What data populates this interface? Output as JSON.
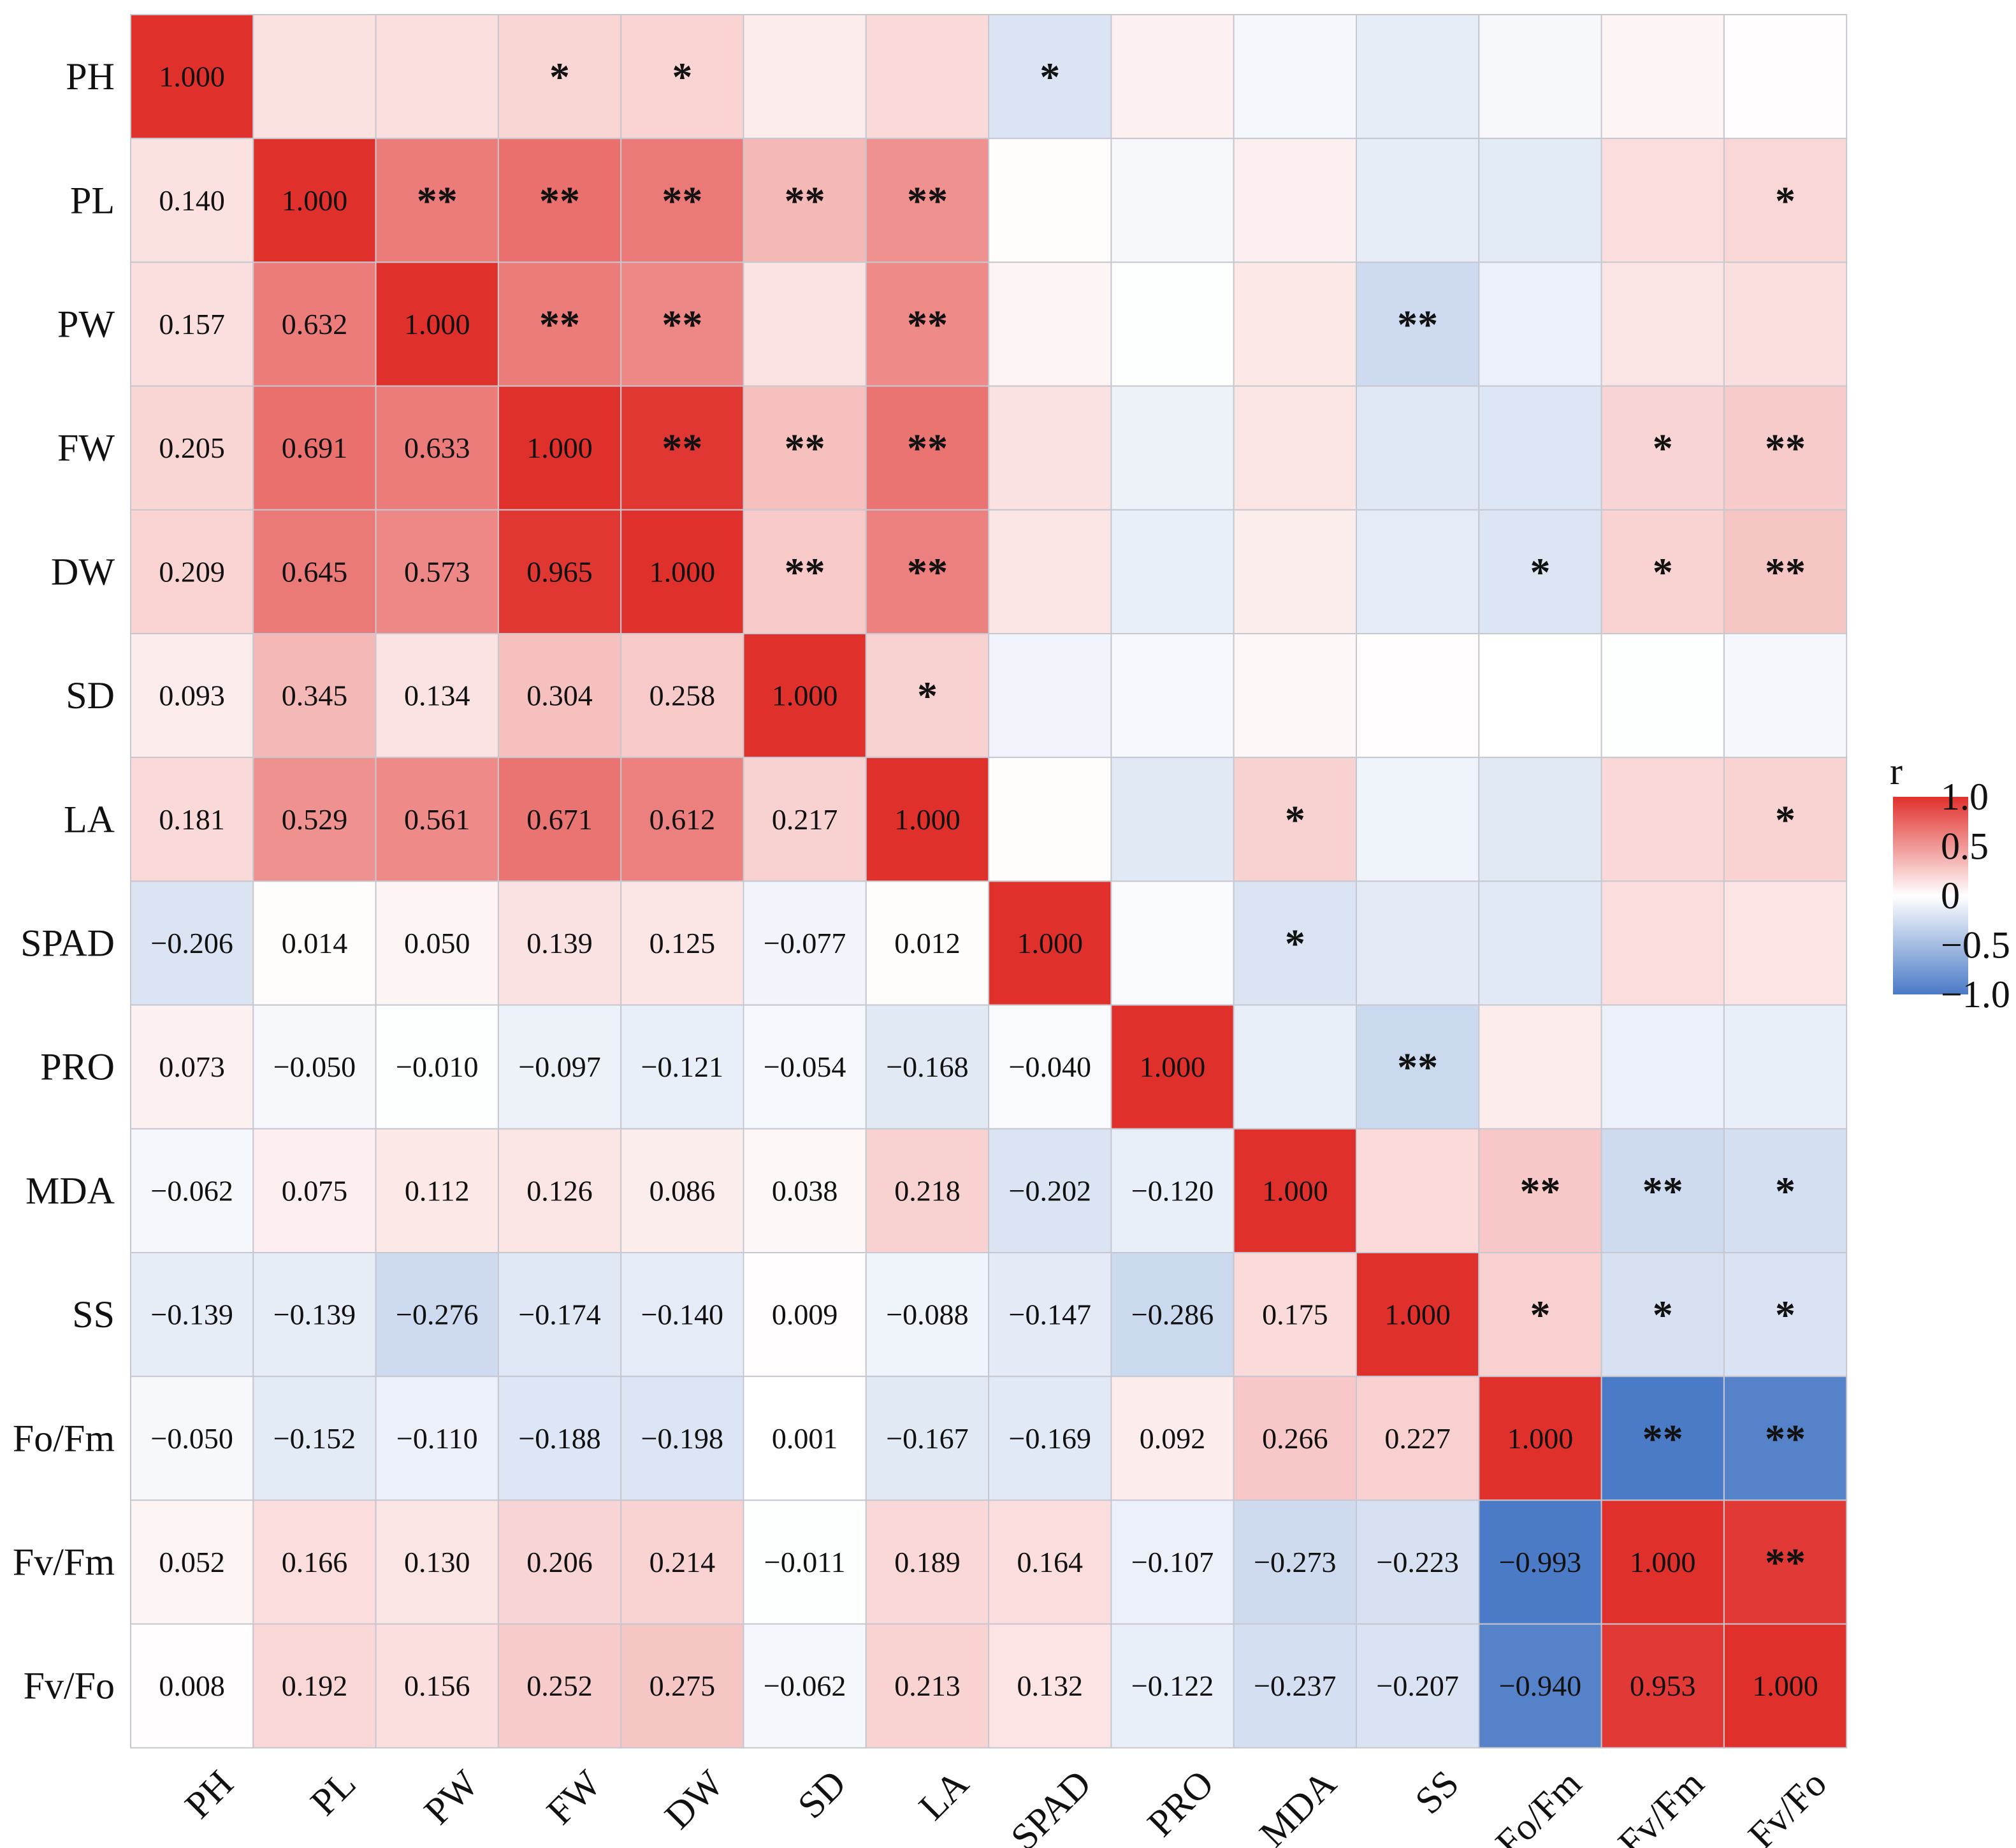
{
  "chart_data": {
    "type": "heatmap",
    "title": "",
    "variables": [
      "PH",
      "PL",
      "PW",
      "FW",
      "DW",
      "SD",
      "LA",
      "SPAD",
      "PRO",
      "MDA",
      "SS",
      "Fo/Fm",
      "Fv/Fm",
      "Fv/Fo"
    ],
    "lower_triangle_and_diagonal": [
      [
        "1.000"
      ],
      [
        "0.140",
        "1.000"
      ],
      [
        "0.157",
        "0.632",
        "1.000"
      ],
      [
        "0.205",
        "0.691",
        "0.633",
        "1.000"
      ],
      [
        "0.209",
        "0.645",
        "0.573",
        "0.965",
        "1.000"
      ],
      [
        "0.093",
        "0.345",
        "0.134",
        "0.304",
        "0.258",
        "1.000"
      ],
      [
        "0.181",
        "0.529",
        "0.561",
        "0.671",
        "0.612",
        "0.217",
        "1.000"
      ],
      [
        "−0.206",
        "0.014",
        "0.050",
        "0.139",
        "0.125",
        "−0.077",
        "0.012",
        "1.000"
      ],
      [
        "0.073",
        "−0.050",
        "−0.010",
        "−0.097",
        "−0.121",
        "−0.054",
        "−0.168",
        "−0.040",
        "1.000"
      ],
      [
        "−0.062",
        "0.075",
        "0.112",
        "0.126",
        "0.086",
        "0.038",
        "0.218",
        "−0.202",
        "−0.120",
        "1.000"
      ],
      [
        "−0.139",
        "−0.139",
        "−0.276",
        "−0.174",
        "−0.140",
        "0.009",
        "−0.088",
        "−0.147",
        "−0.286",
        "0.175",
        "1.000"
      ],
      [
        "−0.050",
        "−0.152",
        "−0.110",
        "−0.188",
        "−0.198",
        "0.001",
        "−0.167",
        "−0.169",
        "0.092",
        "0.266",
        "0.227",
        "1.000"
      ],
      [
        "0.052",
        "0.166",
        "0.130",
        "0.206",
        "0.214",
        "−0.011",
        "0.189",
        "0.164",
        "−0.107",
        "−0.273",
        "−0.223",
        "−0.993",
        "1.000"
      ],
      [
        "0.008",
        "0.192",
        "0.156",
        "0.252",
        "0.275",
        "−0.062",
        "0.213",
        "0.132",
        "−0.122",
        "−0.237",
        "−0.207",
        "−0.940",
        "0.953",
        "1.000"
      ]
    ],
    "significance_upper": [
      {
        "row": 0,
        "col": 3,
        "stars": "*"
      },
      {
        "row": 0,
        "col": 4,
        "stars": "*"
      },
      {
        "row": 0,
        "col": 7,
        "stars": "*"
      },
      {
        "row": 1,
        "col": 2,
        "stars": "**"
      },
      {
        "row": 1,
        "col": 3,
        "stars": "**"
      },
      {
        "row": 1,
        "col": 4,
        "stars": "**"
      },
      {
        "row": 1,
        "col": 5,
        "stars": "**"
      },
      {
        "row": 1,
        "col": 6,
        "stars": "**"
      },
      {
        "row": 1,
        "col": 13,
        "stars": "*"
      },
      {
        "row": 2,
        "col": 3,
        "stars": "**"
      },
      {
        "row": 2,
        "col": 4,
        "stars": "**"
      },
      {
        "row": 2,
        "col": 6,
        "stars": "**"
      },
      {
        "row": 2,
        "col": 10,
        "stars": "**"
      },
      {
        "row": 3,
        "col": 4,
        "stars": "**"
      },
      {
        "row": 3,
        "col": 5,
        "stars": "**"
      },
      {
        "row": 3,
        "col": 6,
        "stars": "**"
      },
      {
        "row": 3,
        "col": 12,
        "stars": "*"
      },
      {
        "row": 3,
        "col": 13,
        "stars": "**"
      },
      {
        "row": 4,
        "col": 5,
        "stars": "**"
      },
      {
        "row": 4,
        "col": 6,
        "stars": "**"
      },
      {
        "row": 4,
        "col": 11,
        "stars": "*"
      },
      {
        "row": 4,
        "col": 12,
        "stars": "*"
      },
      {
        "row": 4,
        "col": 13,
        "stars": "**"
      },
      {
        "row": 5,
        "col": 6,
        "stars": "*"
      },
      {
        "row": 6,
        "col": 9,
        "stars": "*"
      },
      {
        "row": 6,
        "col": 13,
        "stars": "*"
      },
      {
        "row": 7,
        "col": 9,
        "stars": "*"
      },
      {
        "row": 8,
        "col": 10,
        "stars": "**"
      },
      {
        "row": 9,
        "col": 11,
        "stars": "**"
      },
      {
        "row": 9,
        "col": 12,
        "stars": "**"
      },
      {
        "row": 9,
        "col": 13,
        "stars": "*"
      },
      {
        "row": 10,
        "col": 11,
        "stars": "*"
      },
      {
        "row": 10,
        "col": 12,
        "stars": "*"
      },
      {
        "row": 10,
        "col": 13,
        "stars": "*"
      },
      {
        "row": 11,
        "col": 12,
        "stars": "**"
      },
      {
        "row": 11,
        "col": 13,
        "stars": "**"
      },
      {
        "row": 12,
        "col": 13,
        "stars": "**"
      }
    ],
    "color_scale": {
      "title": "r",
      "range": [
        -1.0,
        1.0
      ],
      "ticks": [
        "1.0",
        "0.5",
        "0",
        "−0.5",
        "−1.0"
      ],
      "tick_values": [
        1.0,
        0.5,
        0,
        -0.5,
        -1.0
      ],
      "low_color": "#4a7ac6",
      "mid_color": "#ffffff",
      "high_color": "#e0302c"
    },
    "cell_border_color": "#c7c7cf"
  }
}
